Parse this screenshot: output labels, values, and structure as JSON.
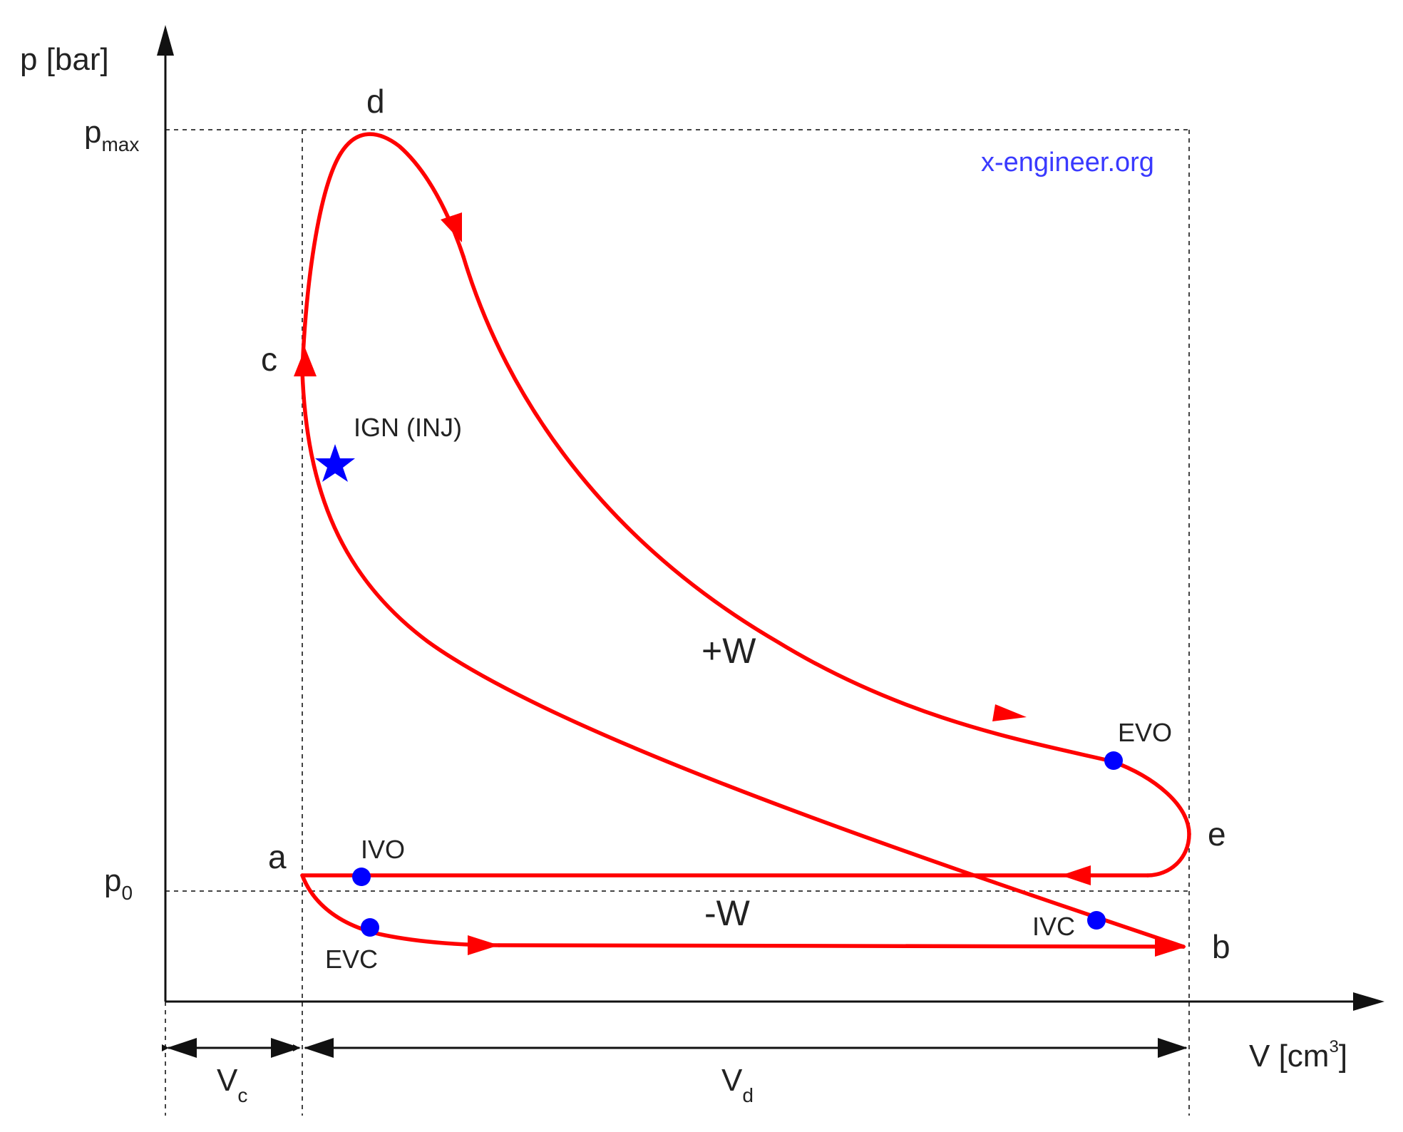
{
  "axes": {
    "y_label": "p [bar]",
    "x_label_main": "V [cm",
    "x_label_sup": "3",
    "x_label_close": "]"
  },
  "levels": {
    "pmax_main": "p",
    "pmax_sub": "max",
    "p0_main": "p",
    "p0_sub": "0"
  },
  "volumes": {
    "vc_main": "V",
    "vc_sub": "c",
    "vd_main": "V",
    "vd_sub": "d"
  },
  "points": {
    "a": "a",
    "b": "b",
    "c": "c",
    "d": "d",
    "e": "e"
  },
  "events": {
    "ivo": "IVO",
    "ivc": "IVC",
    "evo": "EVO",
    "evc": "EVC",
    "ign": "IGN (INJ)"
  },
  "work": {
    "positive": "+W",
    "negative": "-W"
  },
  "watermark": "x-engineer.org",
  "colors": {
    "cycle": "#ff0000",
    "event_marker": "#0000ff",
    "watermark": "#3a3aff",
    "axis": "#111111",
    "guide": "#444444"
  },
  "icons": {
    "ignition_marker": "star-icon",
    "event_marker": "dot-icon"
  }
}
